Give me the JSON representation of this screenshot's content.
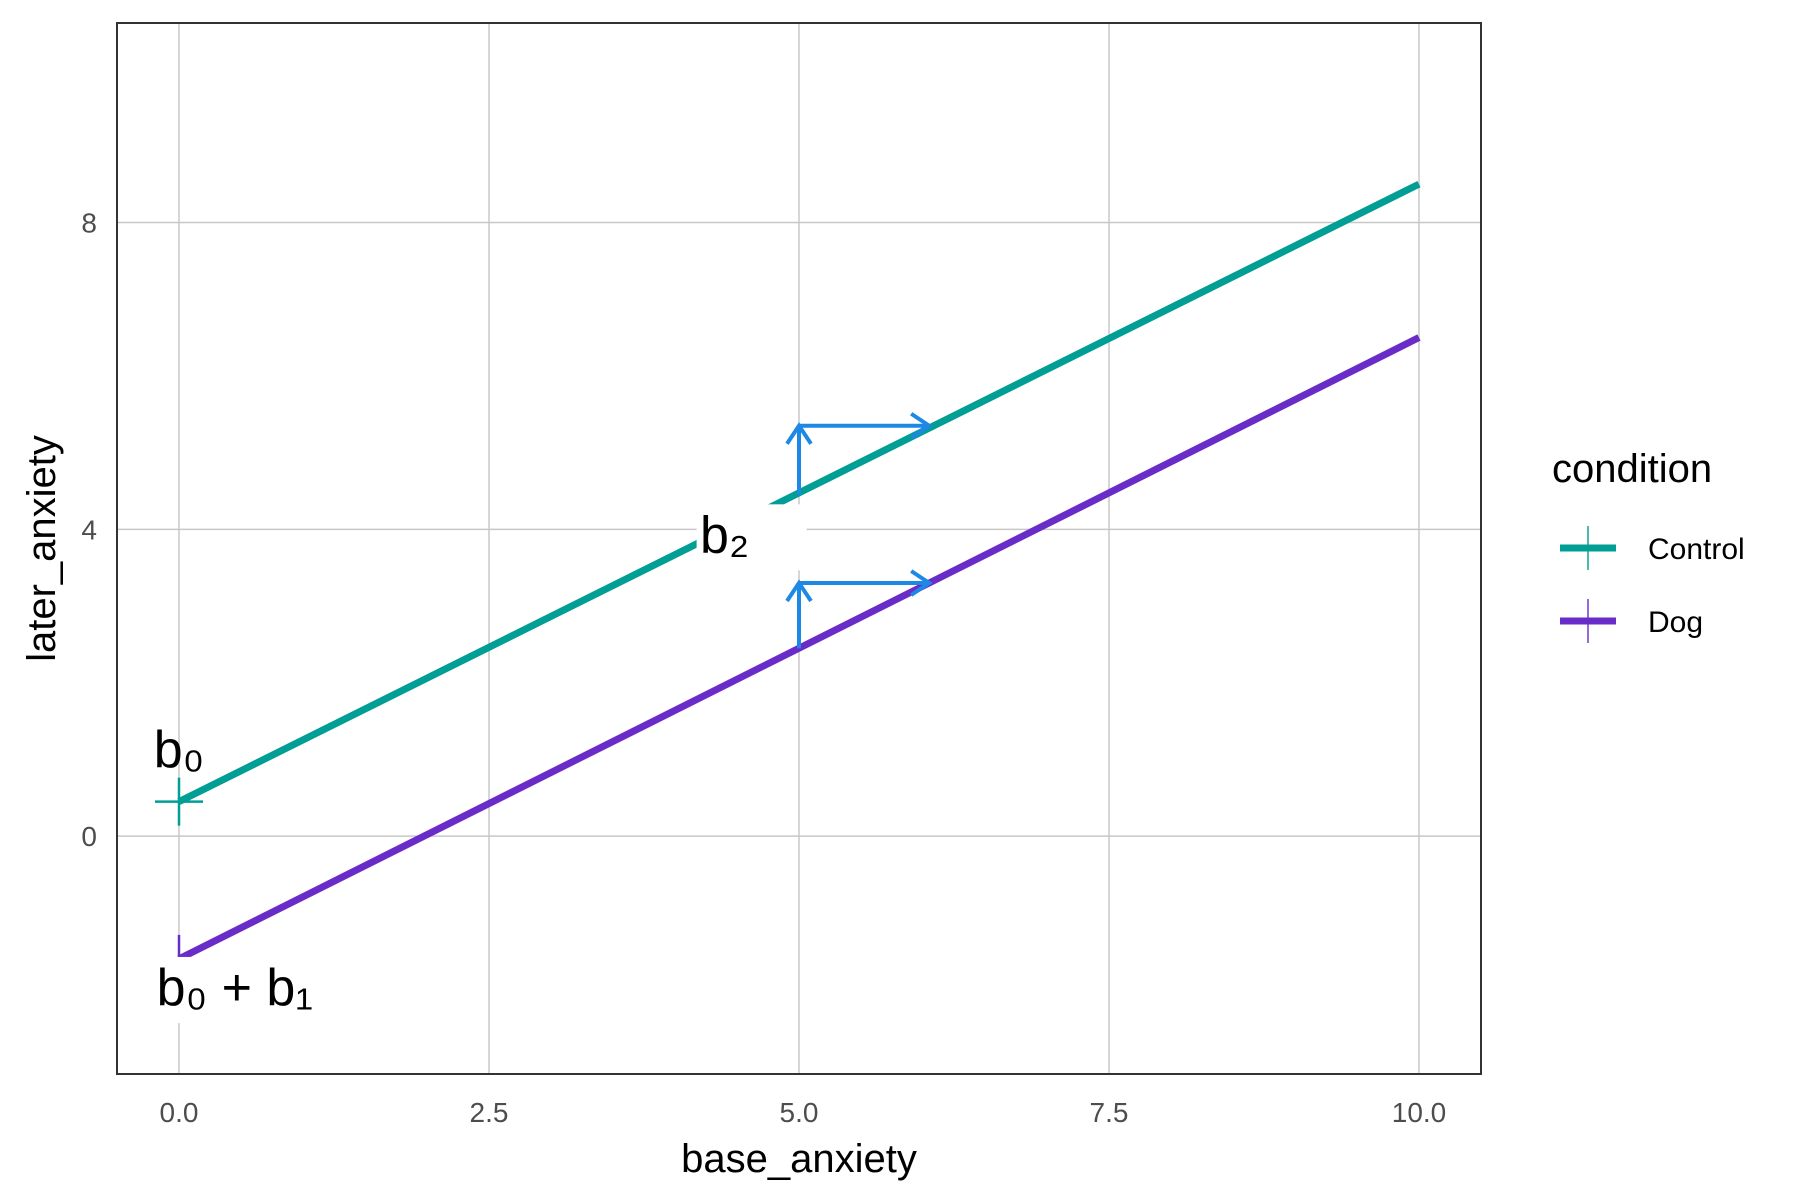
{
  "chart_data": {
    "type": "line",
    "title": "",
    "xlabel": "base_anxiety",
    "ylabel": "later_anxiety",
    "xlim": [
      -0.5,
      10.5
    ],
    "ylim": [
      -3.1,
      10.6
    ],
    "x_ticks": [
      0,
      2.5,
      5,
      7.5,
      10
    ],
    "x_tick_labels": [
      "0.0",
      "2.5",
      "5.0",
      "7.5",
      "10.0"
    ],
    "y_ticks": [
      0,
      4,
      8
    ],
    "y_tick_labels": [
      "0",
      "4",
      "8"
    ],
    "grid": true,
    "legend": {
      "title": "condition",
      "position": "right"
    },
    "series": [
      {
        "name": "Control",
        "color": "#009E94",
        "x": [
          0,
          10
        ],
        "y": [
          0.45,
          8.5
        ],
        "intercept_marker": [
          0,
          0.45
        ]
      },
      {
        "name": "Dog",
        "color": "#6A2CC8",
        "x": [
          0,
          10
        ],
        "y": [
          -1.6,
          6.5
        ],
        "intercept_marker": [
          0,
          -1.6
        ]
      }
    ],
    "annotations": [
      {
        "text": "b₀",
        "x": 0,
        "y": 0.9
      },
      {
        "text": "b₀ + b₁",
        "x": 0.45,
        "y": -2.2
      },
      {
        "text": "b₂",
        "x": 4.4,
        "y": 3.7
      }
    ],
    "slope_arrows": {
      "color": "#1E88E5",
      "items": [
        {
          "x0": 5,
          "y0": 4.45,
          "y1": 5.35,
          "x1": 6.05
        },
        {
          "x0": 5,
          "y0": 2.45,
          "y1": 3.3,
          "x1": 6.05
        }
      ]
    }
  }
}
